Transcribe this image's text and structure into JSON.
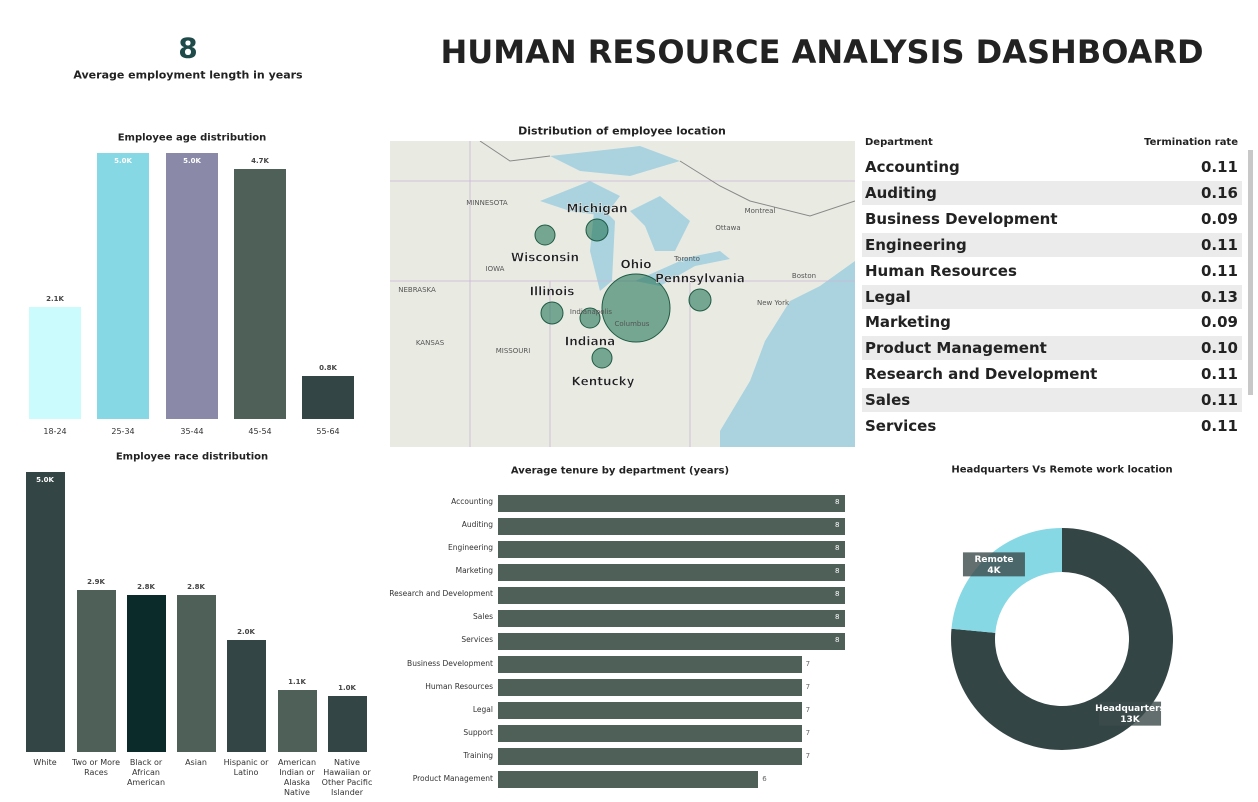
{
  "title": "HUMAN RESOURCE ANALYSIS DASHBOARD",
  "kpi": {
    "value": 8,
    "label": "Average employment length in years"
  },
  "map": {
    "title": "Distribution of employee location",
    "labels": [
      "Michigan",
      "Wisconsin",
      "Illinois",
      "Ohio",
      "Pennsylvania",
      "Indiana",
      "Kentucky"
    ],
    "minor_labels": [
      "MINNESOTA",
      "IOWA",
      "NEBRASKA",
      "KANSAS",
      "MISSOURI",
      "Toronto",
      "Ottawa",
      "Montreal",
      "New York",
      "Boston",
      "Indianapolis",
      "Columbus"
    ]
  },
  "table": {
    "columns": [
      "Department",
      "Termination rate"
    ],
    "rows": [
      [
        "Accounting",
        "0.11"
      ],
      [
        "Auditing",
        "0.16"
      ],
      [
        "Business Development",
        "0.09"
      ],
      [
        "Engineering",
        "0.11"
      ],
      [
        "Human Resources",
        "0.11"
      ],
      [
        "Legal",
        "0.13"
      ],
      [
        "Marketing",
        "0.09"
      ],
      [
        "Product Management",
        "0.10"
      ],
      [
        "Research and Development",
        "0.11"
      ],
      [
        "Sales",
        "0.11"
      ],
      [
        "Services",
        "0.11"
      ]
    ]
  },
  "chart_data": [
    {
      "type": "bar",
      "title": "Employee age distribution",
      "categories": [
        "18-24",
        "25-34",
        "35-44",
        "45-54",
        "55-64"
      ],
      "values": [
        2100,
        5000,
        5000,
        4700,
        800
      ],
      "value_labels": [
        "2.1K",
        "5.0K",
        "5.0K",
        "4.7K",
        "0.8K"
      ],
      "colors": [
        "#ccfbfe",
        "#86d8e4",
        "#8a8aa8",
        "#4f6059",
        "#344545"
      ]
    },
    {
      "type": "bar",
      "title": "Employee race distribution",
      "categories": [
        "White",
        "Two or More Races",
        "Black or African American",
        "Asian",
        "Hispanic or Latino",
        "American Indian or Alaska Native",
        "Native Hawaiian or Other Pacific Islander"
      ],
      "values": [
        5000,
        2900,
        2800,
        2800,
        2000,
        1100,
        1000
      ],
      "value_labels": [
        "5.0K",
        "2.9K",
        "2.8K",
        "2.8K",
        "2.0K",
        "1.1K",
        "1.0K"
      ],
      "colors": [
        "#344545",
        "#4f6059",
        "#0b2a2a",
        "#4f6059",
        "#344545",
        "#4f6059",
        "#344545"
      ]
    },
    {
      "type": "hbar",
      "title": "Average tenure by department (years)",
      "categories": [
        "Accounting",
        "Auditing",
        "Engineering",
        "Marketing",
        "Research and Development",
        "Sales",
        "Services",
        "Business Development",
        "Human Resources",
        "Legal",
        "Support",
        "Training",
        "Product Management"
      ],
      "values": [
        8,
        8,
        8,
        8,
        8,
        8,
        8,
        7,
        7,
        7,
        7,
        7,
        6
      ],
      "color": "#4f6059"
    },
    {
      "type": "donut",
      "title": "Headquarters Vs Remote work location",
      "categories": [
        "Headquarters",
        "Remote"
      ],
      "values": [
        13000,
        4000
      ],
      "value_labels": [
        "13K",
        "4K"
      ],
      "colors": [
        "#344545",
        "#86d8e4"
      ]
    }
  ]
}
